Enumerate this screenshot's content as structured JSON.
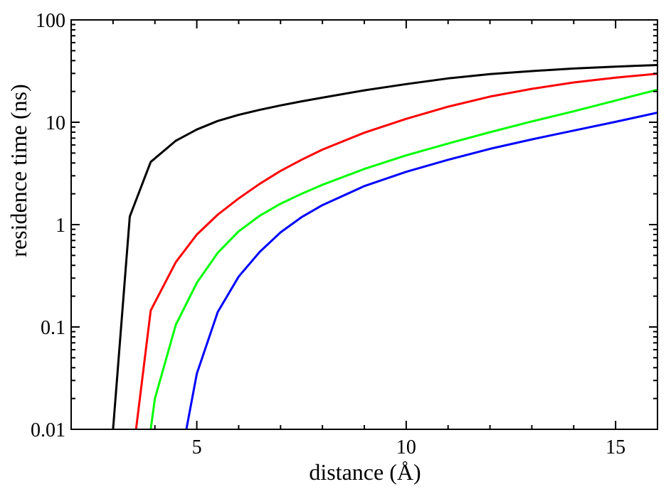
{
  "chart_data": {
    "type": "line",
    "title": "",
    "xlabel": "distance (Å)",
    "ylabel": "residence time (ns)",
    "xlim": [
      2,
      16
    ],
    "ylim": [
      0.01,
      100
    ],
    "yscale": "log",
    "grid": false,
    "legend": "none",
    "x_ticks": [
      5,
      10,
      15
    ],
    "x_tick_labels": [
      "5",
      "10",
      "15"
    ],
    "y_ticks": [
      0.01,
      0.1,
      1,
      10,
      100
    ],
    "y_tick_labels": [
      "0.01",
      "0.1",
      "1",
      "10",
      "100"
    ],
    "series": [
      {
        "color": "#000000",
        "x": [
          3.0,
          3.4,
          3.9,
          4.5,
          5.0,
          5.5,
          6.0,
          6.5,
          7.0,
          7.5,
          8.0,
          9.0,
          10.0,
          11.0,
          12.0,
          13.0,
          14.0,
          15.0,
          16.0
        ],
        "y": [
          0.01,
          1.2,
          4.1,
          6.6,
          8.5,
          10.3,
          11.8,
          13.2,
          14.6,
          16.0,
          17.4,
          20.5,
          23.6,
          26.8,
          29.5,
          31.6,
          33.5,
          35.0,
          36.2
        ]
      },
      {
        "color": "#ff0000",
        "x": [
          3.55,
          3.9,
          4.5,
          5.0,
          5.5,
          6.0,
          6.5,
          7.0,
          7.5,
          8.0,
          9.0,
          10.0,
          11.0,
          12.0,
          13.0,
          14.0,
          15.0,
          16.0
        ],
        "y": [
          0.01,
          0.145,
          0.43,
          0.8,
          1.25,
          1.8,
          2.5,
          3.35,
          4.3,
          5.4,
          7.9,
          10.8,
          14.2,
          17.8,
          21.2,
          24.5,
          27.3,
          29.8
        ]
      },
      {
        "color": "#00ff00",
        "x": [
          3.9,
          4.0,
          4.5,
          5.0,
          5.5,
          6.0,
          6.5,
          7.0,
          7.5,
          8.0,
          9.0,
          10.0,
          11.0,
          12.0,
          13.0,
          14.0,
          15.0,
          16.0
        ],
        "y": [
          0.01,
          0.02,
          0.105,
          0.27,
          0.53,
          0.86,
          1.22,
          1.6,
          2.0,
          2.45,
          3.5,
          4.75,
          6.2,
          8.0,
          10.2,
          12.8,
          16.3,
          20.8
        ]
      },
      {
        "color": "#0000ff",
        "x": [
          4.75,
          5.0,
          5.5,
          6.0,
          6.5,
          7.0,
          7.5,
          8.0,
          9.0,
          10.0,
          11.0,
          12.0,
          13.0,
          14.0,
          15.0,
          16.0
        ],
        "y": [
          0.01,
          0.035,
          0.14,
          0.31,
          0.54,
          0.84,
          1.18,
          1.55,
          2.38,
          3.28,
          4.3,
          5.5,
          6.8,
          8.3,
          10.1,
          12.4
        ]
      }
    ]
  }
}
